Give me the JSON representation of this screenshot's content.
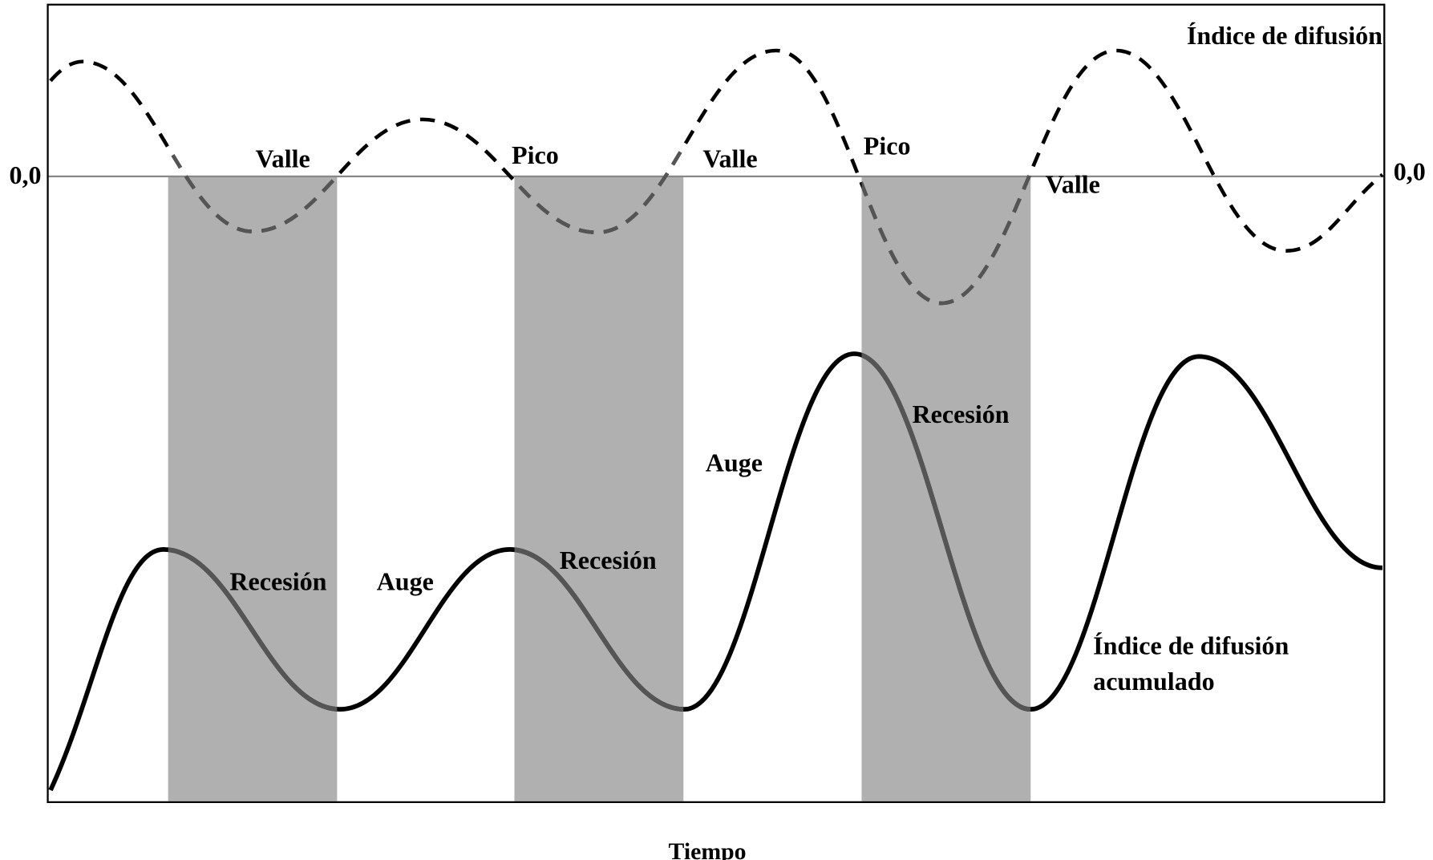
{
  "labels": {
    "dashed_curve": "Índice de difusión",
    "zero_left": "0,0",
    "zero_right": "0,0",
    "valle_1": "Valle",
    "pico_1": "Pico",
    "valle_2": "Valle",
    "pico_2": "Pico",
    "valle_3": "Valle",
    "recesion_1": "Recesión",
    "auge_1": "Auge",
    "recesion_2": "Recesión",
    "auge_2": "Auge",
    "recesion_3": "Recesión",
    "solid_curve_line1": "Índice de difusión",
    "solid_curve_line2": "acumulado",
    "x_axis": "Tiempo"
  }
}
